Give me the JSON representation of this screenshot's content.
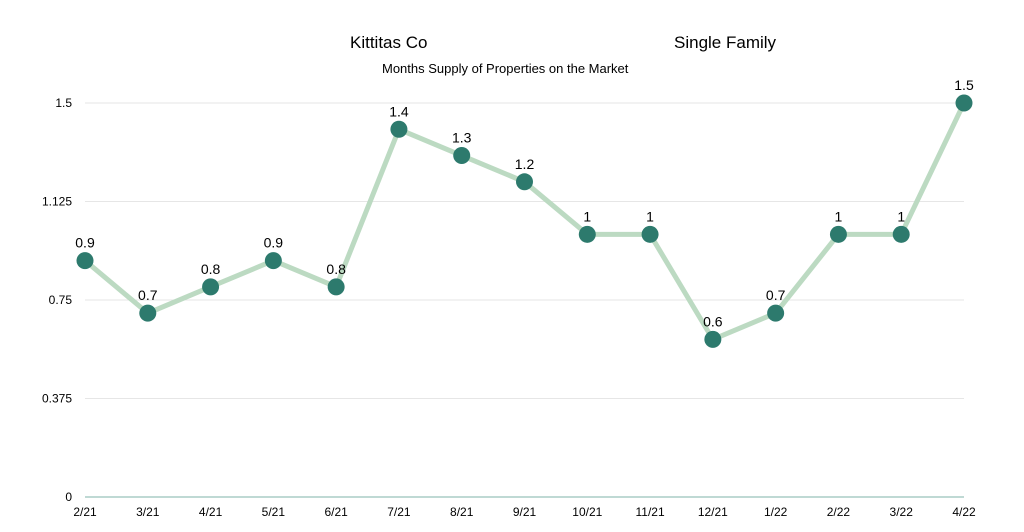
{
  "chart_data": {
    "type": "line",
    "title_left": "Kittitas Co",
    "title_right": "Single Family",
    "subtitle": "Months Supply of Properties on the Market",
    "xlabel": "",
    "ylabel": "",
    "categories": [
      "2/21",
      "3/21",
      "4/21",
      "5/21",
      "6/21",
      "7/21",
      "8/21",
      "9/21",
      "10/21",
      "11/21",
      "12/21",
      "1/22",
      "2/22",
      "3/22",
      "4/22"
    ],
    "series": [
      {
        "name": "Months Supply",
        "values": [
          0.9,
          0.7,
          0.8,
          0.9,
          0.8,
          1.4,
          1.3,
          1.2,
          1,
          1,
          0.6,
          0.7,
          1,
          1,
          1.5
        ]
      }
    ],
    "data_labels": [
      "0.9",
      "0.7",
      "0.8",
      "0.9",
      "0.8",
      "1.4",
      "1.3",
      "1.2",
      "1",
      "1",
      "0.6",
      "0.7",
      "1",
      "1",
      "1.5"
    ],
    "yticks": [
      "0",
      "0.375",
      "0.75",
      "1.125",
      "1.5"
    ],
    "ytick_values": [
      0,
      0.375,
      0.75,
      1.125,
      1.5
    ],
    "ylim": [
      0,
      1.5
    ],
    "grid": true,
    "legend": "none",
    "colors": {
      "line": "#bcdac2",
      "marker": "#2d7a6d",
      "grid": "#e6e6e6",
      "axis": "#7fb3a8"
    }
  }
}
